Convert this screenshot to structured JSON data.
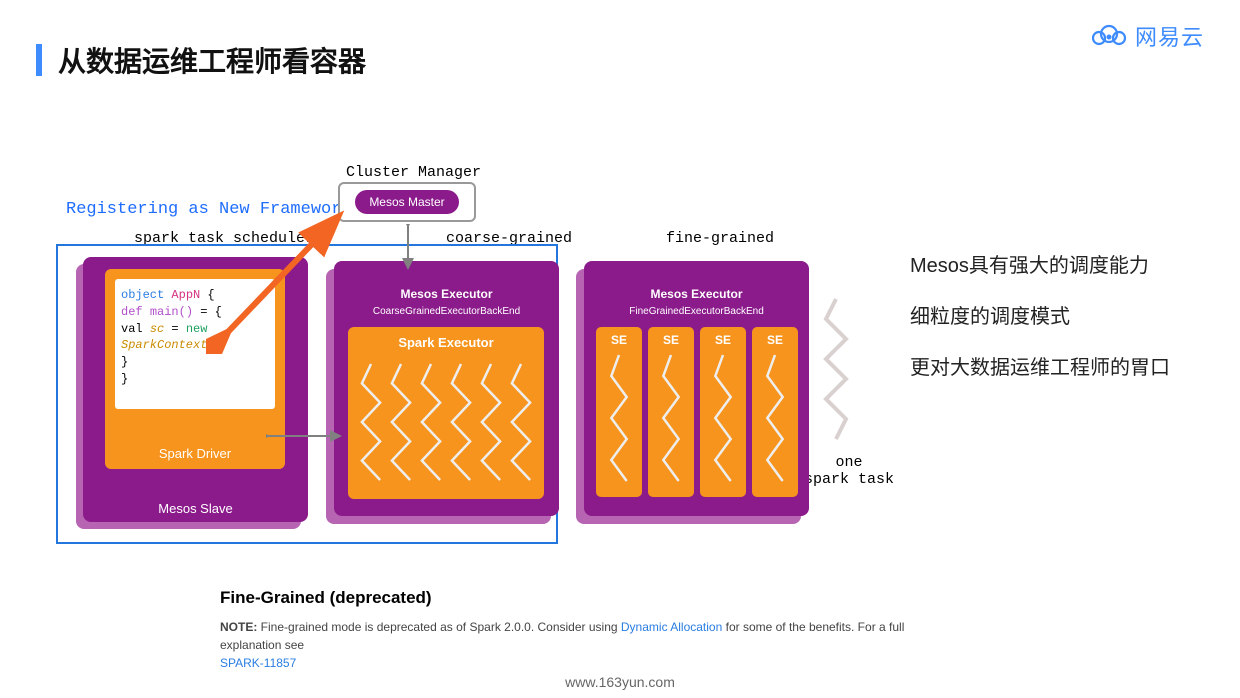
{
  "page": {
    "title": "从数据运维工程师看容器",
    "footer_url": "www.163yun.com",
    "logo_text": "网易云",
    "logo_color": "#3d8bfd",
    "accent_color": "#3d8bfd"
  },
  "colors": {
    "purple_dark": "#8b1a8b",
    "purple_light": "#b765b3",
    "orange": "#f7941d",
    "blue_border": "#2376dd",
    "link": "#2a7de1",
    "squiggle": "#eeeeee",
    "arrow_orange": "#f26522",
    "arrow_grey": "#808080"
  },
  "labels": {
    "registering": "Registering as New Framework",
    "task_scheduler": "spark task scheduler",
    "cluster_manager": "Cluster Manager",
    "coarse": "coarse-grained",
    "fine": "fine-grained",
    "one_task_l1": "one",
    "one_task_l2": "spark task",
    "mesos_master": "Mesos Master",
    "mesos_slave": "Mesos Slave",
    "spark_driver": "Spark Driver",
    "mesos_executor": "Mesos Executor",
    "coarse_backend": "CoarseGrainedExecutorBackEnd",
    "fine_backend": "FineGrainedExecutorBackEnd",
    "spark_executor": "Spark Executor",
    "se": "SE"
  },
  "code": {
    "l1a": "object ",
    "l1b": "AppN",
    "l1c": " {",
    "l2a": "  def ",
    "l2b": "main()",
    "l2c": " = {",
    "l3a": "    val ",
    "l3b": "sc",
    "l3c": " = ",
    "l3d": "new",
    "l4": " SparkContext()",
    "l5": "  }",
    "l6": "}"
  },
  "diagram": {
    "se_count": 4,
    "coarse_squiggles": 6
  },
  "side_text": {
    "p1": "Mesos具有强大的调度能力",
    "p2": "细粒度的调度模式",
    "p3": "更对大数据运维工程师的胃口"
  },
  "note": {
    "title": "Fine-Grained (deprecated)",
    "bold": "NOTE:",
    "body1": " Fine-grained mode is deprecated as of Spark 2.0.0. Consider using ",
    "link1": "Dynamic Allocation",
    "body2": " for some of the benefits. For a full explanation see ",
    "link2": "SPARK-11857"
  }
}
